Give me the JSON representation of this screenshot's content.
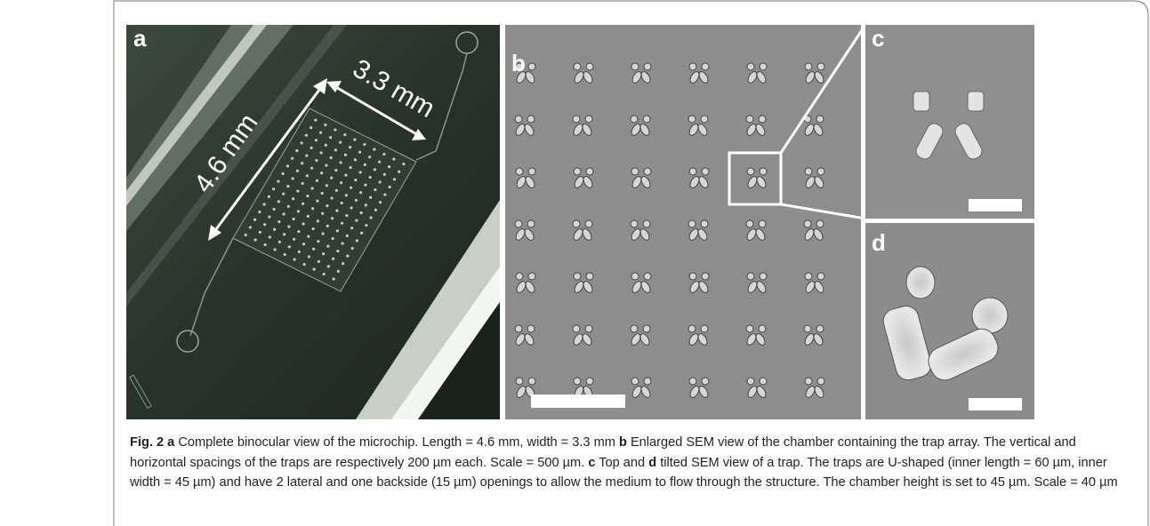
{
  "figure": {
    "panels": {
      "a": "a",
      "b": "b",
      "c": "c",
      "d": "d"
    },
    "annotations": {
      "length": "4.6 mm",
      "width": "3.3 mm"
    },
    "caption": {
      "label": "Fig. 2",
      "parts": [
        {
          "panel": "a",
          "text": " Complete binocular view of the microchip. Length = 4.6 mm, width = 3.3 mm "
        },
        {
          "panel": "b",
          "text": " Enlarged SEM view of the chamber containing the trap array. The vertical and horizontal spacings of the traps are respectively 200 µm each. Scale = 500 µm. "
        },
        {
          "panel": "c",
          "text": " Top and "
        },
        {
          "panel": "d",
          "text": " tilted SEM view of a trap. The traps are U-shaped (inner length = 60 µm, inner width = 45 µm) and have 2 lateral and one backside (15 µm) openings to allow the medium to flow through the structure. The chamber height is set to 45 µm. Scale = 40 µm"
        }
      ]
    }
  }
}
